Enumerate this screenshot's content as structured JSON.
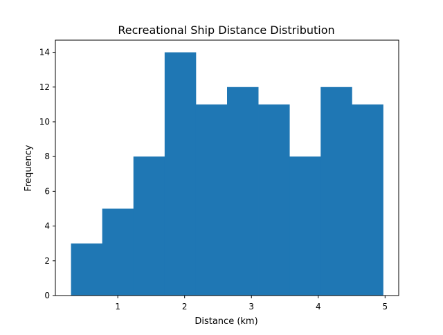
{
  "chart_data": {
    "type": "bar",
    "title": "Recreational Ship Distance Distribution",
    "xlabel": "Distance (km)",
    "ylabel": "Frequency",
    "bin_edges": [
      0.3,
      0.767,
      1.234,
      1.701,
      2.168,
      2.635,
      3.102,
      3.569,
      4.036,
      4.503,
      4.97
    ],
    "values": [
      3,
      5,
      8,
      14,
      11,
      12,
      11,
      8,
      12,
      11
    ],
    "xlim": [
      0.066,
      5.204
    ],
    "ylim": [
      0,
      14.7
    ],
    "xticks": [
      1,
      2,
      3,
      4,
      5
    ],
    "yticks": [
      0,
      2,
      4,
      6,
      8,
      10,
      12,
      14
    ],
    "bar_color": "#1f77b4",
    "grid": false,
    "legend": "none"
  }
}
